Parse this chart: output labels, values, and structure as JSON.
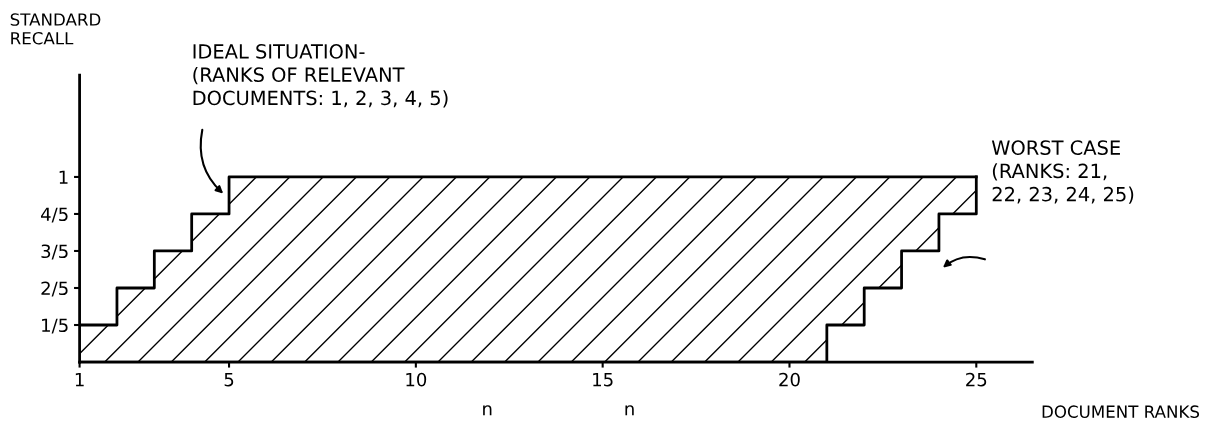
{
  "chart_data": {
    "type": "step",
    "xlabel": "DOCUMENT RANKS",
    "ylabel": "STANDARD\nRECALL",
    "x": [
      1,
      2,
      3,
      4,
      5,
      6,
      7,
      8,
      9,
      10,
      11,
      12,
      13,
      14,
      15,
      16,
      17,
      18,
      19,
      20,
      21,
      22,
      23,
      24,
      25
    ],
    "series": [
      {
        "color": "#000000",
        "values": [
          0.2,
          0.4,
          0.6,
          0.8,
          1,
          1,
          1,
          1,
          1,
          1,
          1,
          1,
          1,
          1,
          1,
          1,
          1,
          1,
          1,
          1,
          1,
          1,
          1,
          1,
          1
        ],
        "lower": [
          0,
          0,
          0,
          0,
          0,
          0,
          0,
          0,
          0,
          0,
          0,
          0,
          0,
          0,
          0,
          0,
          0,
          0,
          0,
          0,
          0.2,
          0.4,
          0.6,
          0.8,
          1
        ],
        "upper": [
          0.2,
          0.4,
          0.6,
          0.8,
          1,
          1,
          1,
          1,
          1,
          1,
          1,
          1,
          1,
          1,
          1,
          1,
          1,
          1,
          1,
          1,
          1,
          1,
          1,
          1,
          1
        ]
      },
      {
        "color": "#000000",
        "values": [
          0,
          0,
          0,
          0,
          0,
          0,
          0,
          0,
          0,
          0,
          0,
          0,
          0,
          0,
          0,
          0,
          0,
          0,
          0,
          0,
          0.2,
          0.4,
          0.6,
          0.8,
          1
        ]
      }
    ],
    "xlim": [
      1,
      26.5
    ],
    "ylim": [
      0,
      1.55
    ],
    "xticks": [
      1,
      5,
      10,
      15,
      20,
      25
    ],
    "yticks": [
      {
        "value": 0.2,
        "label": "1/5"
      },
      {
        "value": 0.4,
        "label": "2/5"
      },
      {
        "value": 0.6,
        "label": "3/5"
      },
      {
        "value": 0.8,
        "label": "4/5"
      },
      1
    ],
    "grid": false,
    "legend": false,
    "annotations": [
      "IDEAL SITUATION-\n(RANKS OF RELEVANT\nDOCUMENTS: 1, 2, 3, 4, 5)",
      "WORST CASE\n(RANKS: 21,\n22, 23, 24, 25)",
      "n",
      "n"
    ]
  }
}
